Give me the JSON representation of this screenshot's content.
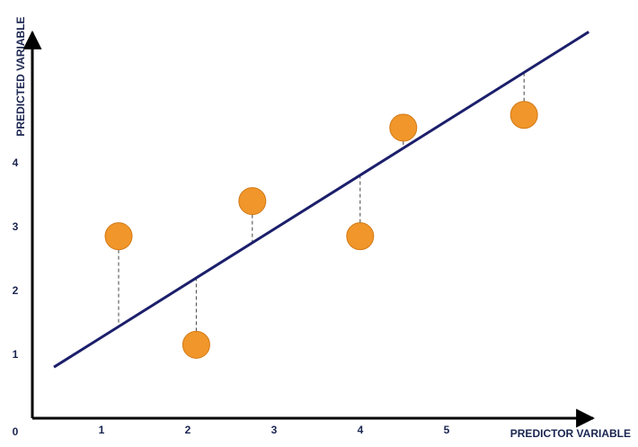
{
  "chart_data": {
    "type": "scatter",
    "title": "",
    "xlabel": "PREDICTOR VARIABLE",
    "ylabel": "PREDICTED VARIABLE",
    "origin_label": "0",
    "x_ticks": [
      "1",
      "2",
      "3",
      "4",
      "5"
    ],
    "y_ticks": [
      "1",
      "2",
      "3",
      "4"
    ],
    "xlim": [
      0,
      6.5
    ],
    "ylim": [
      0,
      6
    ],
    "points": [
      {
        "x": 1.0,
        "y": 2.85
      },
      {
        "x": 1.9,
        "y": 1.15
      },
      {
        "x": 2.55,
        "y": 3.4
      },
      {
        "x": 3.8,
        "y": 2.85
      },
      {
        "x": 4.3,
        "y": 4.55
      },
      {
        "x": 5.7,
        "y": 4.75
      }
    ],
    "regression_line": {
      "x1": 0.25,
      "y1": 0.8,
      "x2": 6.45,
      "y2": 6.05
    },
    "residuals_shown": true,
    "grid": false,
    "colors": {
      "axis": "#000000",
      "line": "#1b1f6b",
      "point_fill": "#f0962a",
      "point_stroke": "#d37a17",
      "residual": "#444444",
      "text": "#1a2550"
    }
  }
}
